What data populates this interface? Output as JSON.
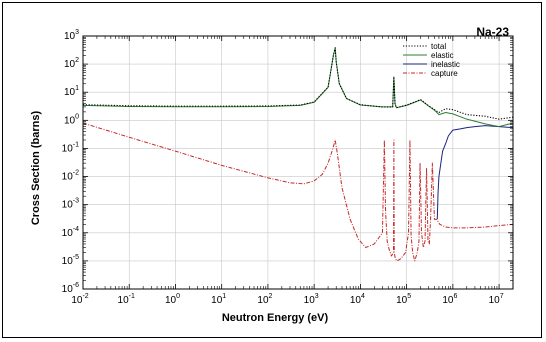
{
  "chart_data": {
    "type": "line",
    "title": "Na-23",
    "xlabel": "Neutron Energy (eV)",
    "ylabel": "Cross Section (barns)",
    "xscale": "log",
    "yscale": "log",
    "xlim": [
      0.01,
      20000000
    ],
    "ylim": [
      1e-06,
      1000
    ],
    "grid": true,
    "legend_position": "top-right",
    "x_ticks": [
      0.01,
      0.1,
      1,
      10,
      100,
      1000,
      10000,
      100000,
      1000000,
      10000000
    ],
    "x_tick_labels": [
      {
        "base": "10",
        "exp": "-2"
      },
      {
        "base": "10",
        "exp": "-1"
      },
      {
        "base": "10",
        "exp": "0"
      },
      {
        "base": "10",
        "exp": "1"
      },
      {
        "base": "10",
        "exp": "2"
      },
      {
        "base": "10",
        "exp": "3"
      },
      {
        "base": "10",
        "exp": "4"
      },
      {
        "base": "10",
        "exp": "5"
      },
      {
        "base": "10",
        "exp": "6"
      },
      {
        "base": "10",
        "exp": "7"
      }
    ],
    "y_ticks": [
      1e-06,
      1e-05,
      0.0001,
      0.001,
      0.01,
      0.1,
      1,
      10,
      100,
      1000
    ],
    "y_tick_labels": [
      {
        "base": "10",
        "exp": "-6"
      },
      {
        "base": "10",
        "exp": "-5"
      },
      {
        "base": "10",
        "exp": "-4"
      },
      {
        "base": "10",
        "exp": "-3"
      },
      {
        "base": "10",
        "exp": "-2"
      },
      {
        "base": "10",
        "exp": "-1"
      },
      {
        "base": "10",
        "exp": "0"
      },
      {
        "base": "10",
        "exp": "1"
      },
      {
        "base": "10",
        "exp": "2"
      },
      {
        "base": "10",
        "exp": "3"
      }
    ],
    "series": [
      {
        "name": "total",
        "color": "#000000",
        "style": "dotted",
        "x": [
          0.01,
          0.1,
          1,
          10,
          100,
          500,
          1000,
          2000,
          2600,
          2850,
          3000,
          3500,
          5000,
          10000,
          30000,
          50000,
          53000,
          56000,
          60000,
          100000,
          150000,
          200000,
          300000,
          400000,
          500000,
          700000,
          1000000,
          2000000,
          5000000,
          10000000,
          20000000
        ],
        "y": [
          3.6,
          3.3,
          3.2,
          3.2,
          3.25,
          3.5,
          4.5,
          15,
          200,
          380,
          120,
          20,
          6,
          3.6,
          3,
          3,
          35,
          4,
          2.8,
          3.5,
          4.5,
          5.5,
          3.3,
          2.4,
          1.9,
          2.6,
          2.4,
          1.6,
          1.4,
          1.1,
          1.3
        ]
      },
      {
        "name": "elastic",
        "color": "#2e7d32",
        "style": "solid",
        "x": [
          0.01,
          0.1,
          1,
          10,
          100,
          500,
          1000,
          2000,
          2600,
          2850,
          3000,
          3500,
          5000,
          10000,
          30000,
          50000,
          53000,
          56000,
          60000,
          100000,
          150000,
          200000,
          300000,
          400000,
          500000,
          700000,
          1000000,
          2000000,
          5000000,
          10000000,
          20000000
        ],
        "y": [
          3.4,
          3.1,
          3.05,
          3.05,
          3.1,
          3.4,
          4.4,
          15,
          200,
          380,
          120,
          20,
          6,
          3.5,
          3,
          3,
          35,
          4,
          2.8,
          3.4,
          4.4,
          5.3,
          3.2,
          2.3,
          1.6,
          1.9,
          1.7,
          1.1,
          0.75,
          0.6,
          0.8
        ]
      },
      {
        "name": "inelastic",
        "color": "#1a237e",
        "style": "solid",
        "x": [
          460000,
          480000,
          500000,
          550000,
          600000,
          700000,
          800000,
          1000000,
          1500000,
          2000000,
          3000000,
          5000000,
          10000000,
          20000000
        ],
        "y": [
          0.0003,
          0.003,
          0.01,
          0.03,
          0.08,
          0.15,
          0.28,
          0.45,
          0.5,
          0.55,
          0.6,
          0.65,
          0.6,
          0.55
        ]
      },
      {
        "name": "capture",
        "color": "#c62828",
        "style": "dashdot",
        "x": [
          0.01,
          0.1,
          1,
          10,
          100,
          300,
          600,
          1000,
          1500,
          2000,
          2500,
          2850,
          3200,
          4000,
          6000,
          9000,
          13000,
          20000,
          30000,
          33000,
          35000,
          38000,
          42000,
          47000,
          52000,
          53000,
          54000,
          57000,
          62000,
          75000,
          95000,
          110000,
          118000,
          125000,
          135000,
          150000,
          170000,
          185000,
          195000,
          210000,
          230000,
          250000,
          270000,
          290000,
          310000,
          330000,
          360000,
          400000,
          450000,
          520000,
          700000,
          1000000,
          2000000,
          5000000,
          10000000,
          20000000
        ],
        "y": [
          0.8,
          0.25,
          0.08,
          0.025,
          0.009,
          0.006,
          0.0055,
          0.007,
          0.012,
          0.03,
          0.09,
          0.2,
          0.06,
          0.004,
          0.0003,
          6e-05,
          3e-05,
          4e-05,
          0.0001,
          0.2,
          0.0006,
          5e-05,
          2.5e-05,
          1.5e-05,
          2e-05,
          0.2,
          2e-05,
          1.2e-05,
          1e-05,
          1.2e-05,
          2e-05,
          0.0001,
          0.2,
          8e-05,
          2e-05,
          1e-05,
          2e-05,
          5e-05,
          0.03,
          0.0001,
          3e-05,
          5e-05,
          0.02,
          5e-05,
          4e-05,
          0.0003,
          0.03,
          0.0003,
          0.0003,
          0.0002,
          0.00016,
          0.00015,
          0.00015,
          0.00016,
          0.00018,
          0.0002
        ]
      }
    ]
  }
}
